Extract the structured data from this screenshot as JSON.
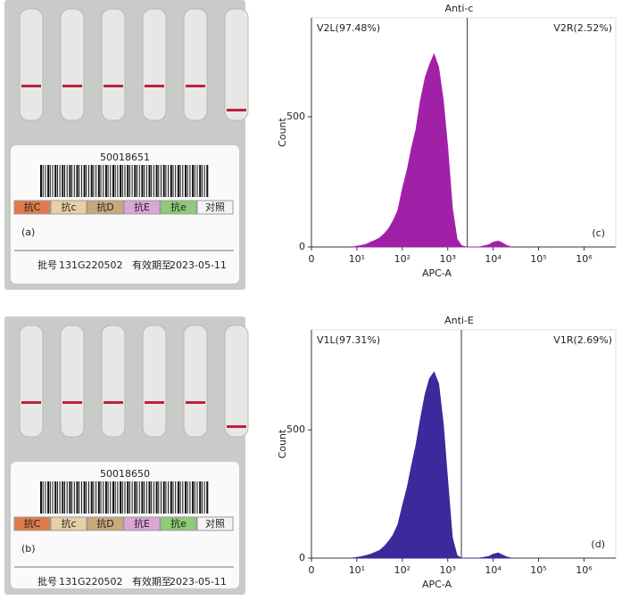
{
  "photos": [
    {
      "code": "50018651",
      "tubes": [
        "抗C",
        "抗c",
        "抗D",
        "抗E",
        "抗e",
        "对照"
      ],
      "panel": "(a)",
      "lot_label": "批号",
      "lot": "131G220502",
      "expiry_label": "有效期至",
      "expiry": "2023-05-11"
    },
    {
      "code": "50018650",
      "tubes": [
        "抗C",
        "抗c",
        "抗D",
        "抗E",
        "抗e",
        "对照"
      ],
      "panel": "(b)",
      "lot_label": "批号",
      "lot": "131G220502",
      "expiry_label": "有效期至",
      "expiry": "2023-05-11"
    }
  ],
  "chart_data": [
    {
      "type": "histogram",
      "title": "Anti-c",
      "panel": "(c)",
      "x_label": "APC-A",
      "y_label": "Count",
      "color": "#a020a8",
      "log_scale": true,
      "gate": 2700,
      "gate_labels": [
        "V2L(97.48%)",
        "V2R(2.52%)"
      ],
      "x": [
        8,
        12,
        16,
        20,
        25,
        32,
        40,
        50,
        63,
        80,
        100,
        130,
        160,
        200,
        250,
        320,
        400,
        500,
        630,
        800,
        1000,
        1260,
        1600,
        2000,
        2500,
        3200,
        5000,
        8000,
        10000,
        13000,
        16000,
        20000,
        25000
      ],
      "values": [
        0,
        5,
        10,
        18,
        25,
        35,
        50,
        70,
        100,
        140,
        220,
        300,
        380,
        450,
        560,
        650,
        700,
        740,
        690,
        560,
        380,
        150,
        30,
        5,
        0,
        0,
        0,
        8,
        18,
        22,
        15,
        5,
        0
      ],
      "xlim": [
        0,
        5000000
      ],
      "xticks": [
        0,
        {
          "value": 10,
          "label": "10¹"
        },
        {
          "value": 100,
          "label": "10²"
        },
        {
          "value": 1000,
          "label": "10³"
        },
        {
          "value": 10000,
          "label": "10⁴"
        },
        {
          "value": 100000,
          "label": "10⁵"
        },
        {
          "value": 1000000,
          "label": "10⁶"
        }
      ],
      "ylim": [
        0,
        880
      ],
      "yticks": [
        0,
        500
      ]
    },
    {
      "type": "histogram",
      "title": "Anti-E",
      "panel": "(d)",
      "x_label": "APC-A",
      "y_label": "Count",
      "color": "#3b2a9c",
      "log_scale": true,
      "gate": 2000,
      "gate_labels": [
        "V1L(97.31%)",
        "V1R(2.69%)"
      ],
      "x": [
        8,
        12,
        16,
        20,
        25,
        32,
        40,
        50,
        63,
        80,
        100,
        130,
        160,
        200,
        250,
        320,
        400,
        500,
        630,
        800,
        1000,
        1260,
        1600,
        2000,
        2500,
        3200,
        5000,
        8000,
        10000,
        13000,
        16000,
        20000,
        25000
      ],
      "values": [
        0,
        5,
        10,
        15,
        22,
        30,
        45,
        65,
        90,
        130,
        200,
        280,
        360,
        440,
        540,
        640,
        700,
        725,
        680,
        520,
        300,
        80,
        10,
        0,
        0,
        0,
        0,
        6,
        15,
        20,
        12,
        4,
        0
      ],
      "xlim": [
        0,
        5000000
      ],
      "xticks": [
        0,
        {
          "value": 10,
          "label": "10¹"
        },
        {
          "value": 100,
          "label": "10²"
        },
        {
          "value": 1000,
          "label": "10³"
        },
        {
          "value": 10000,
          "label": "10⁴"
        },
        {
          "value": 100000,
          "label": "10⁵"
        },
        {
          "value": 1000000,
          "label": "10⁶"
        }
      ],
      "ylim": [
        0,
        890
      ],
      "yticks": [
        0,
        500
      ]
    }
  ]
}
